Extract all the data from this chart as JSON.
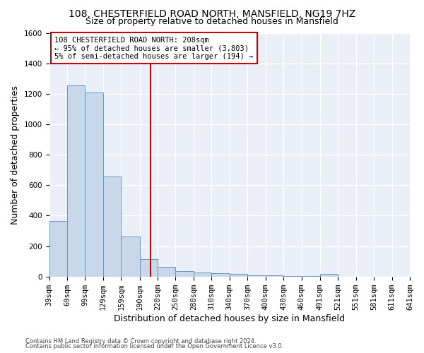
{
  "title1": "108, CHESTERFIELD ROAD NORTH, MANSFIELD, NG19 7HZ",
  "title2": "Size of property relative to detached houses in Mansfield",
  "xlabel": "Distribution of detached houses by size in Mansfield",
  "ylabel": "Number of detached properties",
  "footer1": "Contains HM Land Registry data © Crown copyright and database right 2024.",
  "footer2": "Contains public sector information licensed under the Open Government Licence v3.0.",
  "bar_lefts": [
    39,
    69,
    99,
    129,
    159,
    190,
    220,
    250,
    280,
    310,
    340,
    370,
    400,
    430,
    460,
    491,
    521,
    551,
    581,
    611
  ],
  "bar_rights": [
    69,
    99,
    129,
    159,
    190,
    220,
    250,
    280,
    310,
    340,
    370,
    400,
    430,
    460,
    491,
    521,
    551,
    581,
    611,
    641
  ],
  "bar_heights": [
    365,
    1255,
    1210,
    655,
    265,
    115,
    65,
    35,
    25,
    20,
    15,
    10,
    10,
    5,
    5,
    15,
    0,
    0,
    0,
    0
  ],
  "bar_color": "#c8d8ea",
  "bar_edgecolor": "#6699bb",
  "vline_x": 208,
  "vline_color": "#cc0000",
  "annotation_text": "108 CHESTERFIELD ROAD NORTH: 208sqm\n← 95% of detached houses are smaller (3,803)\n5% of semi-detached houses are larger (194) →",
  "annotation_box_color": "#cc0000",
  "ylim": [
    0,
    1600
  ],
  "yticks": [
    0,
    200,
    400,
    600,
    800,
    1000,
    1200,
    1400,
    1600
  ],
  "xlim": [
    39,
    641
  ],
  "tick_labels": [
    "39sqm",
    "69sqm",
    "99sqm",
    "129sqm",
    "159sqm",
    "190sqm",
    "220sqm",
    "250sqm",
    "280sqm",
    "310sqm",
    "340sqm",
    "370sqm",
    "400sqm",
    "430sqm",
    "460sqm",
    "491sqm",
    "521sqm",
    "551sqm",
    "581sqm",
    "611sqm",
    "641sqm"
  ],
  "tick_positions": [
    39,
    69,
    99,
    129,
    159,
    190,
    220,
    250,
    280,
    310,
    340,
    370,
    400,
    430,
    460,
    491,
    521,
    551,
    581,
    611,
    641
  ],
  "bg_color": "#eaeff7",
  "grid_color": "#ffffff",
  "title_fontsize": 10,
  "subtitle_fontsize": 9,
  "ylabel_fontsize": 9,
  "xlabel_fontsize": 9,
  "tick_fontsize": 7.5,
  "annot_fontsize": 7.5,
  "footer_fontsize": 6
}
